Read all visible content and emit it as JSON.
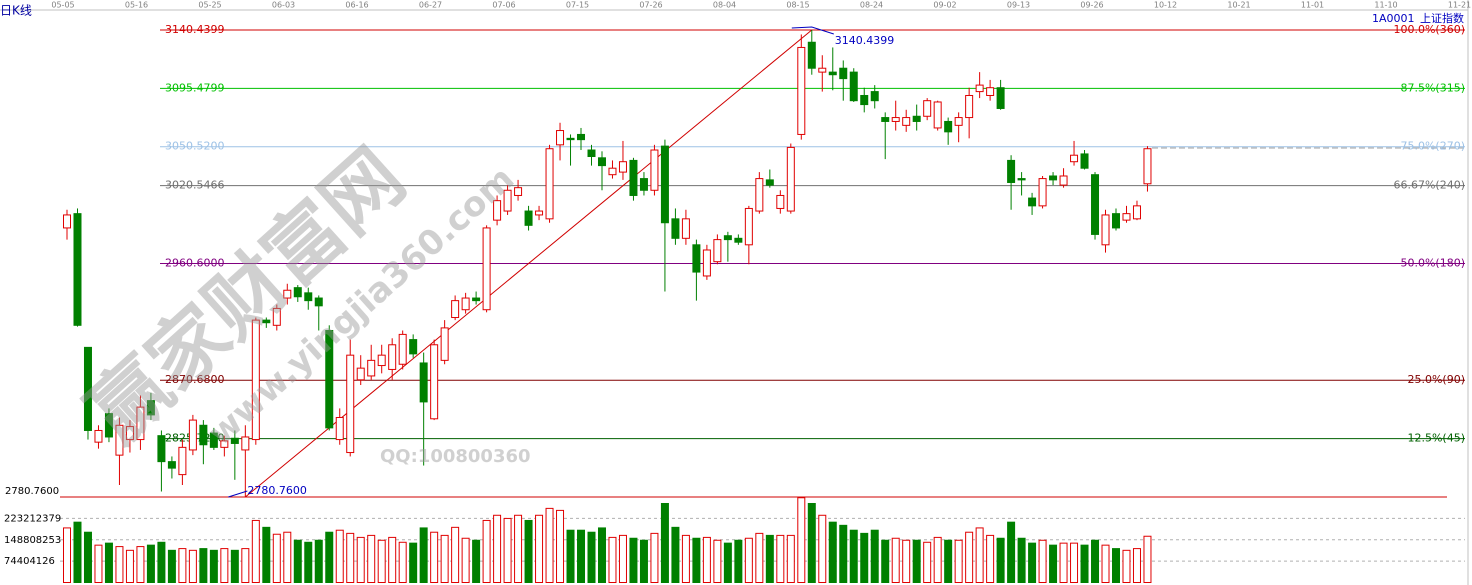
{
  "header": {
    "period": "日K线",
    "code": "1A0001",
    "name": "上证指数"
  },
  "chart_data": {
    "type": "candlestick",
    "date_labels": [
      "05-05",
      "05-16",
      "05-25",
      "06-03",
      "06-16",
      "06-27",
      "07-06",
      "07-15",
      "07-26",
      "08-04",
      "08-15",
      "08-24",
      "09-02",
      "09-13",
      "09-26",
      "10-12",
      "10-21",
      "11-01",
      "11-10",
      "11-21"
    ],
    "up_color": "#e00000",
    "down_color": "#008000",
    "ylim": [
      2780.76,
      3140.4399
    ],
    "yticks": [
      {
        "value": 2780.76,
        "label": "2780.7600"
      }
    ],
    "open": [
      2988,
      2999,
      2896,
      2823,
      2845,
      2813,
      2825,
      2825,
      2855,
      2828,
      2808,
      2798,
      2817,
      2836,
      2830,
      2819,
      2826,
      2817,
      2825,
      2917,
      2913,
      2934,
      2942,
      2938,
      2934,
      2909,
      2825,
      2815,
      2871,
      2874,
      2882,
      2879,
      2883,
      2902,
      2884,
      2841,
      2886,
      2919,
      2925,
      2934,
      2925,
      2994,
      3001,
      3013,
      3001,
      2998,
      2995,
      3052,
      3057,
      3060,
      3048,
      3042,
      3029,
      3031,
      3040,
      3026,
      3017,
      3051,
      2995,
      2980,
      2975,
      2951,
      2962,
      2982,
      2980,
      2975,
      3001,
      3025,
      3003,
      3001,
      3060,
      3131,
      3108,
      3108,
      3111,
      3108,
      3090,
      3093,
      3073,
      3070,
      3067,
      3074,
      3074,
      3065,
      3070,
      3067,
      3073,
      3093,
      3090,
      3096,
      3040,
      3026,
      3011,
      3005,
      3028,
      3021,
      3039,
      3045,
      3029,
      2975,
      2999,
      2994,
      2995,
      3022
    ],
    "high": [
      3002,
      3003,
      2896,
      2836,
      2849,
      2842,
      2840,
      2859,
      2861,
      2832,
      2812,
      2825,
      2844,
      2840,
      2834,
      2828,
      2832,
      2836,
      2919,
      2919,
      2929,
      2945,
      2944,
      2942,
      2936,
      2913,
      2849,
      2902,
      2890,
      2898,
      2898,
      2903,
      2909,
      2906,
      2892,
      2902,
      2917,
      2936,
      2938,
      2939,
      2990,
      3013,
      3021,
      3025,
      3005,
      3005,
      3052,
      3069,
      3060,
      3065,
      3052,
      3047,
      3040,
      3055,
      3042,
      3031,
      3052,
      3056,
      3003,
      3002,
      2979,
      2975,
      2983,
      2985,
      2983,
      3005,
      3031,
      3033,
      3017,
      3053,
      3137,
      3140.4399,
      3121,
      3127,
      3117,
      3111,
      3096,
      3098,
      3077,
      3086,
      3079,
      3083,
      3088,
      3086,
      3073,
      3077,
      3096,
      3108,
      3102,
      3102,
      3044,
      3031,
      3015,
      3028,
      3031,
      3034,
      3055,
      3048,
      3031,
      3002,
      3003,
      3005,
      3009,
      3051
    ],
    "low": [
      2979,
      2912,
      2825,
      2818,
      2823,
      2790,
      2815,
      2817,
      2840,
      2785,
      2795,
      2790,
      2813,
      2806,
      2817,
      2812,
      2794,
      2780.76,
      2821,
      2911,
      2909,
      2929,
      2931,
      2925,
      2909,
      2832,
      2821,
      2812,
      2867,
      2871,
      2876,
      2871,
      2879,
      2888,
      2805,
      2840,
      2883,
      2917,
      2922,
      2929,
      2923,
      2990,
      2998,
      3009,
      2986,
      2994,
      2992,
      3040,
      3036,
      3048,
      3036,
      3017,
      3026,
      3025,
      3009,
      3013,
      3013,
      2939,
      2975,
      2975,
      2932,
      2948,
      2960,
      2962,
      2975,
      2960,
      2999,
      3019,
      2999,
      2999,
      3056,
      3106,
      3093,
      3094,
      3086,
      3085,
      3077,
      3080,
      3041,
      3063,
      3062,
      3063,
      3071,
      3063,
      3052,
      3054,
      3057,
      3088,
      3086,
      3079,
      3002,
      3013,
      2998,
      3003,
      3021,
      3019,
      3036,
      3033,
      2979,
      2969,
      2986,
      2992,
      2994,
      3016
    ],
    "close": [
      2998,
      2913,
      2832,
      2832,
      2827,
      2836,
      2835,
      2850,
      2844,
      2808,
      2803,
      2819,
      2840,
      2821,
      2819,
      2824,
      2822,
      2827,
      2917,
      2915,
      2926,
      2940,
      2935,
      2932,
      2928,
      2834,
      2842,
      2890,
      2880,
      2886,
      2890,
      2898,
      2906,
      2891,
      2854,
      2898,
      2911,
      2932,
      2934,
      2932,
      2988,
      3009,
      3017,
      3019,
      2990,
      3001,
      3049,
      3063,
      3056,
      3056,
      3043,
      3036,
      3034,
      3039,
      3013,
      3017,
      3048,
      2992,
      2980,
      2995,
      2954,
      2971,
      2979,
      2979,
      2977,
      3003,
      3026,
      3021,
      3013,
      3050,
      3127,
      3111,
      3111,
      3106,
      3103,
      3086,
      3083,
      3086,
      3070,
      3073,
      3073,
      3070,
      3086,
      3085,
      3062,
      3073,
      3090,
      3098,
      3096,
      3080,
      3023,
      3025,
      3005,
      3026,
      3025,
      3028,
      3044,
      3034,
      2983,
      2998,
      2988,
      2999,
      3005,
      3049
    ],
    "volume": [
      190000000,
      210000000,
      175000000,
      130000000,
      137000000,
      125000000,
      112000000,
      125000000,
      130000000,
      140000000,
      112000000,
      118000000,
      112000000,
      118000000,
      112000000,
      118000000,
      112000000,
      118000000,
      216000000,
      192000000,
      168000000,
      175000000,
      147000000,
      140000000,
      147000000,
      175000000,
      182000000,
      171000000,
      157000000,
      164000000,
      147000000,
      157000000,
      140000000,
      137000000,
      190000000,
      175000000,
      164000000,
      192000000,
      154000000,
      147000000,
      216000000,
      234000000,
      223000000,
      234000000,
      216000000,
      234000000,
      258000000,
      251000000,
      182000000,
      182000000,
      175000000,
      190000000,
      157000000,
      164000000,
      154000000,
      147000000,
      171000000,
      275000000,
      192000000,
      164000000,
      154000000,
      157000000,
      147000000,
      137000000,
      147000000,
      154000000,
      171000000,
      164000000,
      164000000,
      164000000,
      295000000,
      275000000,
      234000000,
      210000000,
      199000000,
      182000000,
      171000000,
      182000000,
      147000000,
      154000000,
      147000000,
      147000000,
      140000000,
      157000000,
      147000000,
      147000000,
      175000000,
      190000000,
      164000000,
      154000000,
      210000000,
      154000000,
      137000000,
      147000000,
      130000000,
      137000000,
      137000000,
      130000000,
      147000000,
      130000000,
      118000000,
      112000000,
      118000000,
      161000000
    ],
    "volume_ylim": [
      0,
      297616504
    ],
    "volume_yticks": [
      74404126,
      148808253,
      223212379
    ],
    "fib_levels": [
      {
        "price": 3140.4399,
        "price_label": "3140.4399",
        "ratio_label": "100.0%(360)",
        "color": "#d00000"
      },
      {
        "price": 3095.4799,
        "price_label": "3095.4799",
        "ratio_label": "87.5%(315)",
        "color": "#00c000"
      },
      {
        "price": 3050.52,
        "price_label": "3050.5200",
        "ratio_label": "75.0%(270)",
        "color": "#9ec2e6"
      },
      {
        "price": 3020.5466,
        "price_label": "3020.5466",
        "ratio_label": "66.67%(240)",
        "color": "#707070"
      },
      {
        "price": 2960.6,
        "price_label": "2960.6000",
        "ratio_label": "50.0%(180)",
        "color": "#800080"
      },
      {
        "price": 2870.68,
        "price_label": "2870.6800",
        "ratio_label": "25.0%(90)",
        "color": "#800000"
      },
      {
        "price": 2825.72,
        "price_label": "2825.7200",
        "ratio_label": "12.5%(45)",
        "color": "#006000"
      }
    ],
    "annotations": {
      "high_label": "3140.4399",
      "low_label": "2780.7600"
    },
    "watermark": {
      "site_cn": "赢家财富网",
      "site_url": "www.yingjia360.com",
      "qq": "QQ:100800360"
    }
  }
}
